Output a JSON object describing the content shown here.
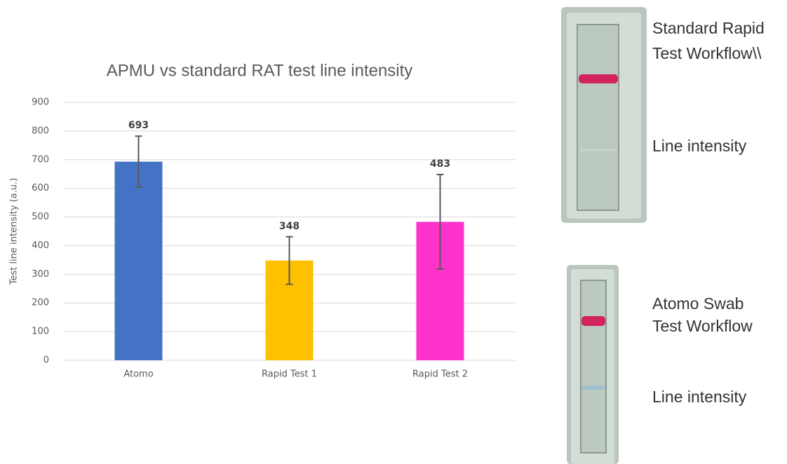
{
  "chart_data": {
    "type": "bar",
    "title": "APMU vs standard RAT test line intensity",
    "y_label": "Test line intensity (a.u.)",
    "categories": [
      "Atomo",
      "Rapid Test 1",
      "Rapid Test 2"
    ],
    "values": [
      693,
      348,
      483
    ],
    "errors": [
      89,
      83,
      165
    ],
    "colors": [
      "#4472c4",
      "#ffc000",
      "#ff33cc"
    ],
    "ylim": [
      0,
      900
    ],
    "yticks": [
      0,
      100,
      200,
      300,
      400,
      500,
      600,
      700,
      800,
      900
    ],
    "grid": true
  },
  "side_panels": [
    {
      "title_lines": [
        "Standard Rapid",
        "Test Workflow\\\\"
      ],
      "label": "Line intensity"
    },
    {
      "title_lines": [
        "Atomo Swab",
        "Test Workflow"
      ],
      "label": "Line intensity"
    }
  ]
}
